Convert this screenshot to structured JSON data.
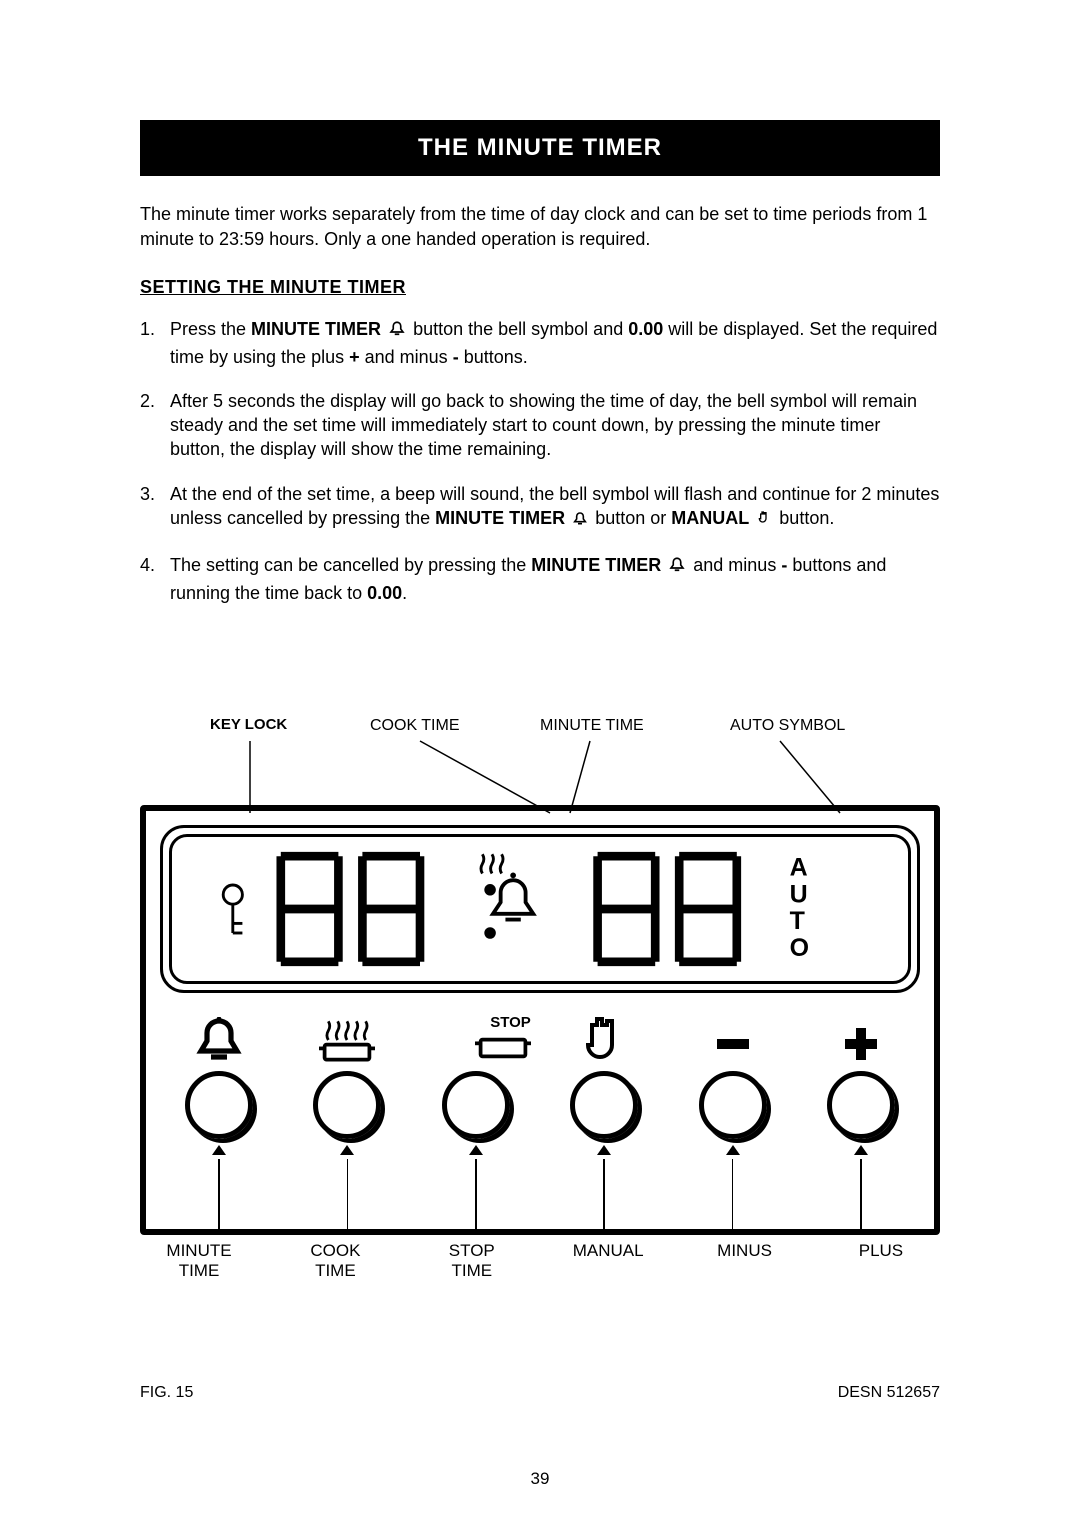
{
  "colors": {
    "page_bg": "#ffffff",
    "text": "#000000",
    "title_bar_bg": "#000000",
    "title_bar_text": "#ffffff",
    "panel_border": "#000000"
  },
  "typography": {
    "body_fontsize_pt": 13,
    "title_fontsize_pt": 18,
    "label_fontsize_pt": 12,
    "font_family": "Arial"
  },
  "title": "THE MINUTE TIMER",
  "intro": "The minute timer works separately from the time of day clock and can be set to time periods from 1 minute to 23:59 hours. Only a one handed operation is required.",
  "subhead": "SETTING THE MINUTE TIMER",
  "steps": {
    "s1_a": "Press the ",
    "s1_b": "MINUTE TIMER",
    "s1_c": " button the bell symbol and ",
    "s1_d": "0.00",
    "s1_e": " will be displayed. Set the required time by using the plus ",
    "s1_f": "+",
    "s1_g": " and minus ",
    "s1_h": "-",
    "s1_i": " buttons.",
    "s2": "After 5 seconds the display will go back to showing the time of day, the bell symbol will remain steady and the set time will immediately start to count down, by pressing the minute timer button, the display will show the time remaining.",
    "s3_a": "At the end of the set time, a beep will sound, the bell symbol will flash and continue for 2 minutes unless cancelled by pressing the ",
    "s3_b": "MINUTE TIMER",
    "s3_c": " button or ",
    "s3_d": "MANUAL",
    "s3_e": " button.",
    "s4_a": "The setting can be cancelled by pressing the ",
    "s4_b": "MINUTE TIMER",
    "s4_c": " and minus ",
    "s4_d": "-",
    "s4_e": " buttons and running the time back to ",
    "s4_f": "0.00",
    "s4_g": "."
  },
  "figure": {
    "top_labels": {
      "key_lock": "KEY LOCK",
      "cook_time": "COOK TIME",
      "minute_time": "MINUTE TIME",
      "auto_symbol": "AUTO SYMBOL"
    },
    "button_labels": {
      "stop": "STOP"
    },
    "bottom_labels": {
      "minute_time": "MINUTE TIME",
      "cook_time": "COOK TIME",
      "stop_time": "STOP TIME",
      "manual": "MANUAL",
      "minus": "MINUS",
      "plus": "PLUS"
    },
    "lcd": {
      "digit_placeholder": "8",
      "auto_text": "AUTO"
    },
    "footer_left": "FIG. 15",
    "footer_right": "DESN 512657"
  },
  "page_number": "39"
}
